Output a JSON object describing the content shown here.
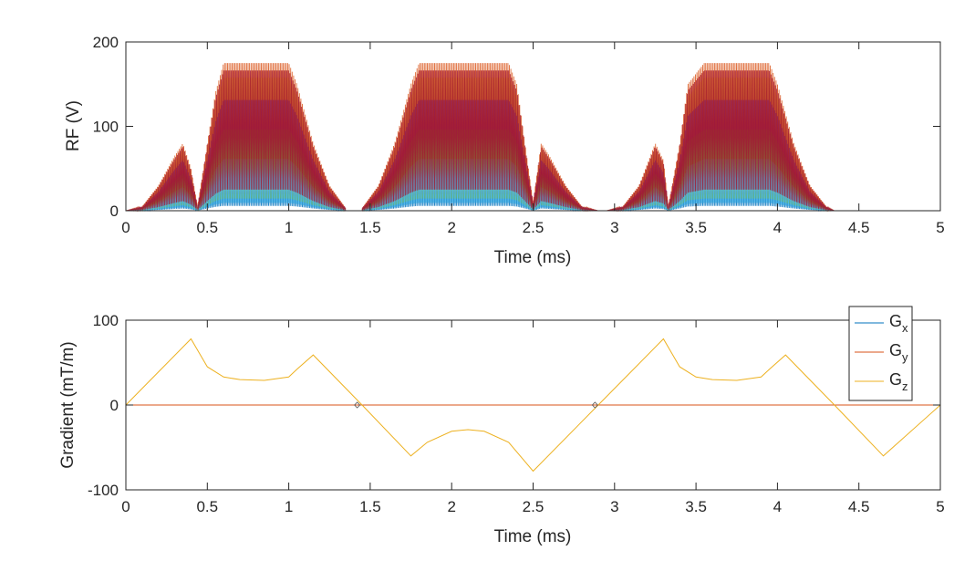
{
  "chart_data": [
    {
      "type": "line",
      "xlabel": "Time (ms)",
      "ylabel": "RF (V)",
      "xlim": [
        0,
        5
      ],
      "ylim": [
        0,
        200
      ],
      "xticks": [
        "0",
        "0.5",
        "1",
        "1.5",
        "2",
        "2.5",
        "3",
        "3.5",
        "4",
        "4.5",
        "5"
      ],
      "yticks": [
        "0",
        "100",
        "200"
      ],
      "grid": false,
      "envelope_segments": [
        {
          "x": [
            0.0,
            0.1,
            0.2,
            0.3,
            0.35,
            0.4,
            0.44
          ],
          "y": [
            0,
            5,
            30,
            65,
            80,
            50,
            5
          ]
        },
        {
          "x": [
            0.44,
            0.5,
            0.55,
            0.6,
            1.0,
            1.05,
            1.15,
            1.25,
            1.35
          ],
          "y": [
            5,
            80,
            140,
            175,
            175,
            150,
            80,
            30,
            3
          ]
        },
        {
          "x": [
            1.45,
            1.55,
            1.65,
            1.75,
            1.8,
            2.35,
            2.4,
            2.45,
            2.5
          ],
          "y": [
            3,
            30,
            80,
            150,
            175,
            175,
            150,
            80,
            10
          ]
        },
        {
          "x": [
            2.5,
            2.55,
            2.6,
            2.7,
            2.8,
            2.9
          ],
          "y": [
            10,
            80,
            65,
            30,
            5,
            0
          ]
        },
        {
          "x": [
            2.95,
            3.05,
            3.15,
            3.25,
            3.3,
            3.33
          ],
          "y": [
            0,
            5,
            30,
            80,
            60,
            5
          ]
        },
        {
          "x": [
            3.33,
            3.4,
            3.45,
            3.55,
            3.95,
            4.0,
            4.1,
            4.2,
            4.3,
            4.35
          ],
          "y": [
            5,
            80,
            150,
            175,
            175,
            150,
            80,
            30,
            5,
            0
          ]
        }
      ],
      "series_colors": [
        "#0072bd",
        "#d95319",
        "#edb120",
        "#7e2f8e",
        "#77ac30",
        "#4dbeee",
        "#a2142f"
      ]
    },
    {
      "type": "line",
      "xlabel": "Time (ms)",
      "ylabel": "Gradient (mT/m)",
      "xlim": [
        0,
        5
      ],
      "ylim": [
        -100,
        100
      ],
      "xticks": [
        "0",
        "0.5",
        "1",
        "1.5",
        "2",
        "2.5",
        "3",
        "3.5",
        "4",
        "4.5",
        "5"
      ],
      "yticks": [
        "-100",
        "0",
        "100"
      ],
      "grid": false,
      "legend": {
        "placement": "top-right",
        "entries": [
          {
            "base": "G",
            "sub": "x"
          },
          {
            "base": "G",
            "sub": "y"
          },
          {
            "base": "G",
            "sub": "z"
          }
        ]
      },
      "series": [
        {
          "color": "#0072bd",
          "x": [
            0,
            5
          ],
          "y": [
            0,
            0
          ]
        },
        {
          "color": "#d95319",
          "x": [
            0,
            5
          ],
          "y": [
            0,
            0
          ]
        },
        {
          "color": "#edb120",
          "x": [
            0.0,
            0.4,
            0.5,
            0.6,
            0.7,
            0.85,
            1.0,
            1.05,
            1.15,
            1.45,
            1.75,
            1.85,
            2.0,
            2.1,
            2.2,
            2.35,
            2.5,
            2.9,
            3.3,
            3.4,
            3.5,
            3.6,
            3.75,
            3.9,
            3.95,
            4.05,
            4.35,
            4.65,
            5.0
          ],
          "y": [
            0,
            78,
            45,
            33,
            30,
            29,
            33,
            42,
            59,
            0,
            -60,
            -44,
            -31,
            -29,
            -31,
            -44,
            -78,
            0,
            78,
            45,
            33,
            30,
            29,
            33,
            42,
            59,
            0,
            -60,
            0
          ]
        }
      ]
    }
  ]
}
